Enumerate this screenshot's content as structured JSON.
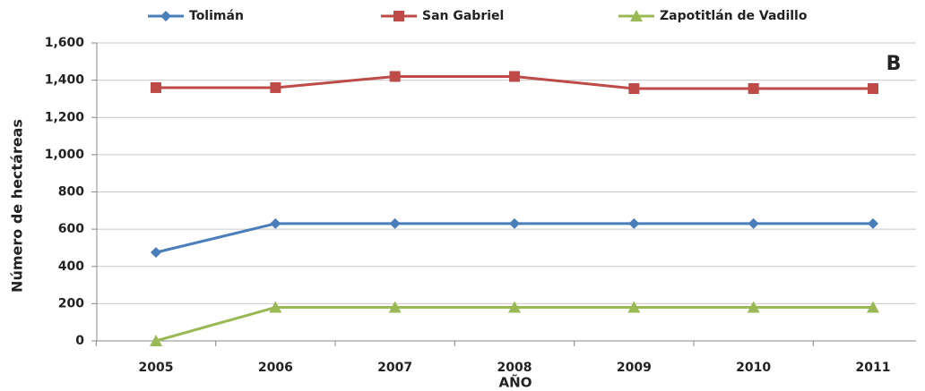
{
  "chart_data": {
    "type": "line",
    "annotation": "B",
    "x_label": "AÑO",
    "y_label": "Número de hectáreas",
    "categories": [
      "2005",
      "2006",
      "2007",
      "2008",
      "2009",
      "2010",
      "2011"
    ],
    "series": [
      {
        "name": "Tolimán",
        "color": "#4a7ebb",
        "marker": "diamond",
        "values": [
          475,
          630,
          630,
          630,
          630,
          630,
          630
        ]
      },
      {
        "name": "San Gabriel",
        "color": "#be4b48",
        "marker": "square",
        "values": [
          1360,
          1360,
          1420,
          1420,
          1355,
          1355,
          1355
        ]
      },
      {
        "name": "Zapotitlán de Vadillo",
        "color": "#98b954",
        "marker": "triangle",
        "values": [
          0,
          180,
          180,
          180,
          180,
          180,
          180
        ]
      }
    ],
    "ylim": [
      0,
      1600
    ],
    "yticks": [
      0,
      200,
      400,
      600,
      800,
      {
        "value": 1000,
        "label": "1,000"
      },
      {
        "value": 1200,
        "label": "1,200"
      },
      {
        "value": 1400,
        "label": "1,400"
      },
      {
        "value": 1600,
        "label": "1,600"
      }
    ],
    "grid": true
  }
}
